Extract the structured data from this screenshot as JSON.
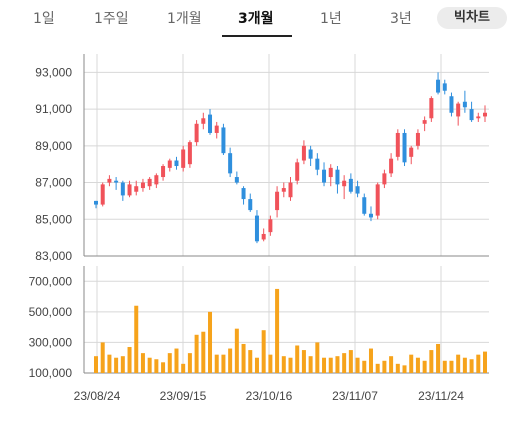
{
  "tabs": [
    {
      "label": "1일",
      "active": false
    },
    {
      "label": "1주일",
      "active": false
    },
    {
      "label": "1개월",
      "active": false
    },
    {
      "label": "3개월",
      "active": true
    },
    {
      "label": "1년",
      "active": false
    },
    {
      "label": "3년",
      "active": false
    }
  ],
  "bitchart_label": "빅차트",
  "colors": {
    "up": "#f0525a",
    "down": "#2f8fdd",
    "volume": "#f6a31b",
    "grid": "#d8d8d8",
    "axis": "#8a8a8a"
  },
  "chart_data": [
    {
      "type": "candlestick",
      "ylim": [
        83000,
        94000
      ],
      "ytick_labels": [
        "93,000",
        "91,000",
        "89,000",
        "87,000",
        "85,000",
        "83,000"
      ],
      "yticks": [
        93000,
        91000,
        89000,
        87000,
        85000,
        83000
      ],
      "ohlc": [
        [
          86000,
          86000,
          85600,
          85800
        ],
        [
          85800,
          87000,
          85700,
          86900
        ],
        [
          87000,
          87400,
          86800,
          87200
        ],
        [
          87100,
          87300,
          86600,
          87000
        ],
        [
          87000,
          87100,
          86000,
          86300
        ],
        [
          86300,
          87100,
          86200,
          86900
        ],
        [
          86500,
          87100,
          86300,
          86800
        ],
        [
          86700,
          87200,
          86500,
          87000
        ],
        [
          86800,
          87300,
          86600,
          87200
        ],
        [
          86900,
          87500,
          86700,
          87400
        ],
        [
          87300,
          88000,
          87100,
          87900
        ],
        [
          87800,
          88300,
          87600,
          88200
        ],
        [
          88200,
          88400,
          87700,
          87900
        ],
        [
          87800,
          89000,
          87600,
          88800
        ],
        [
          88000,
          89300,
          87800,
          89200
        ],
        [
          89200,
          90400,
          89000,
          90200
        ],
        [
          90200,
          90800,
          89900,
          90500
        ],
        [
          90700,
          91000,
          89600,
          89700
        ],
        [
          89700,
          90300,
          89400,
          90100
        ],
        [
          90000,
          90200,
          88500,
          88600
        ],
        [
          88600,
          88900,
          87300,
          87500
        ],
        [
          87300,
          87600,
          86900,
          87000
        ],
        [
          86700,
          86800,
          85800,
          86100
        ],
        [
          86100,
          86400,
          85400,
          85500
        ],
        [
          85200,
          85500,
          83700,
          83800
        ],
        [
          83900,
          84500,
          83800,
          84200
        ],
        [
          84300,
          85200,
          84100,
          85000
        ],
        [
          85500,
          86800,
          85100,
          86500
        ],
        [
          86500,
          87000,
          86200,
          86700
        ],
        [
          86200,
          87300,
          86000,
          87000
        ],
        [
          87100,
          88300,
          86900,
          88100
        ],
        [
          88200,
          89300,
          88000,
          89000
        ],
        [
          88800,
          89000,
          87900,
          88300
        ],
        [
          88300,
          88600,
          87400,
          87700
        ],
        [
          87700,
          88100,
          86800,
          87000
        ],
        [
          87300,
          88000,
          86800,
          87800
        ],
        [
          87700,
          87900,
          86400,
          86900
        ],
        [
          86800,
          87400,
          86100,
          87100
        ],
        [
          87200,
          87500,
          86400,
          86500
        ],
        [
          86800,
          87100,
          86200,
          86400
        ],
        [
          86200,
          86400,
          85200,
          85300
        ],
        [
          85300,
          85700,
          84900,
          85100
        ],
        [
          85200,
          87000,
          85000,
          86900
        ],
        [
          86900,
          87700,
          86700,
          87500
        ],
        [
          87500,
          88600,
          87300,
          88300
        ],
        [
          88400,
          89900,
          88200,
          89700
        ],
        [
          89700,
          89900,
          87900,
          88100
        ],
        [
          88400,
          89000,
          88000,
          88900
        ],
        [
          89000,
          89900,
          88800,
          89700
        ],
        [
          90200,
          90600,
          89800,
          90400
        ],
        [
          90500,
          91700,
          90300,
          91600
        ],
        [
          92600,
          93000,
          91800,
          91900
        ],
        [
          92400,
          92600,
          91800,
          92000
        ],
        [
          91700,
          91900,
          90600,
          90800
        ],
        [
          90600,
          91400,
          90100,
          91300
        ],
        [
          91400,
          92000,
          90800,
          91100
        ],
        [
          91000,
          91400,
          90300,
          90400
        ],
        [
          90500,
          90800,
          90300,
          90600
        ],
        [
          90600,
          91200,
          90300,
          90800
        ]
      ]
    },
    {
      "type": "bar",
      "ylim": [
        100000,
        800000
      ],
      "ytick_labels": [
        "700,000",
        "500,000",
        "300,000",
        "100,000"
      ],
      "yticks": [
        700000,
        500000,
        300000,
        100000
      ],
      "values": [
        210000,
        300000,
        220000,
        200000,
        210000,
        270000,
        540000,
        230000,
        200000,
        190000,
        170000,
        230000,
        260000,
        160000,
        230000,
        350000,
        370000,
        500000,
        220000,
        220000,
        260000,
        390000,
        290000,
        250000,
        200000,
        380000,
        220000,
        650000,
        210000,
        200000,
        280000,
        250000,
        210000,
        300000,
        200000,
        200000,
        210000,
        230000,
        250000,
        200000,
        180000,
        260000,
        160000,
        180000,
        210000,
        160000,
        150000,
        220000,
        200000,
        180000,
        250000,
        290000,
        180000,
        180000,
        220000,
        200000,
        190000,
        220000,
        240000
      ]
    }
  ],
  "x_labels": [
    "23/08/24",
    "23/09/15",
    "23/10/16",
    "23/11/07",
    "23/11/24"
  ]
}
